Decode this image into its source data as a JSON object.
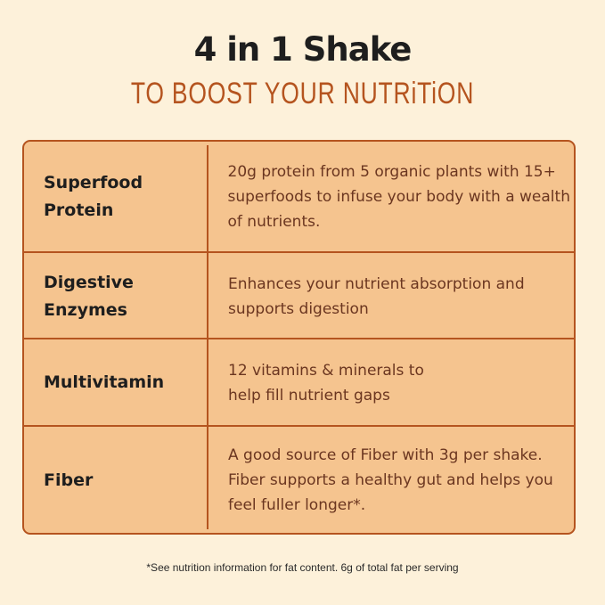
{
  "header": {
    "title": "4 in 1 Shake",
    "subtitle": "TO BOOST YOUR NUTRiTiON"
  },
  "colors": {
    "background": "#fdf1da",
    "table_fill": "#f5c48f",
    "border": "#b5541f",
    "accent_text": "#b5541f"
  },
  "rows": [
    {
      "name": "Superfood Protein",
      "desc": "20g protein from 5 organic plants with 15+ superfoods to infuse your body with a wealth of nutrients."
    },
    {
      "name": "Digestive Enzymes",
      "desc": "Enhances your nutrient absorption and supports digestion"
    },
    {
      "name": "Multivitamin",
      "desc": "12 vitamins & minerals to help fill nutrient gaps"
    },
    {
      "name": "Fiber",
      "desc": "A good source of Fiber with 3g per shake. Fiber supports a healthy gut and helps you feel fuller longer*."
    }
  ],
  "footnote": "*See nutrition information for fat content. 6g of total fat per serving"
}
